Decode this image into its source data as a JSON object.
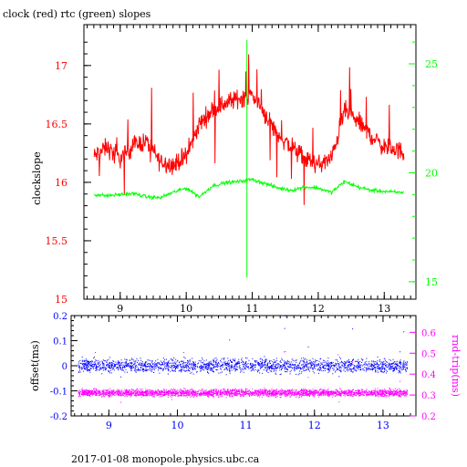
{
  "title": "clock (red) rtc (green) slopes",
  "footer": "2017-01-08 monopole.physics.ubc.ca",
  "colors": {
    "red": "#ff0000",
    "green": "#00ff00",
    "blue": "#0000ff",
    "magenta": "#ff00ff",
    "black": "#000000"
  },
  "chart_data": [
    {
      "type": "line",
      "xlabel": "",
      "ylabel": "clockslope",
      "xlim": [
        8.45,
        13.48
      ],
      "ylim": [
        15,
        17.35
      ],
      "y2lim": [
        14.2,
        26.8
      ],
      "xticks": [
        9,
        10,
        11,
        12,
        13
      ],
      "yticks": [
        15,
        15.5,
        16,
        16.5,
        17
      ],
      "y2ticks": [
        15,
        20,
        25
      ],
      "series": [
        {
          "name": "clock (red)",
          "axis": "left",
          "x": [
            8.6,
            8.8,
            9.0,
            9.2,
            9.4,
            9.6,
            9.8,
            10.0,
            10.2,
            10.4,
            10.6,
            10.8,
            11.0,
            11.2,
            11.4,
            11.6,
            11.8,
            12.0,
            12.2,
            12.4,
            12.6,
            12.8,
            13.0,
            13.2,
            13.3
          ],
          "values": [
            16.22,
            16.3,
            16.2,
            16.32,
            16.35,
            16.18,
            16.15,
            16.22,
            16.5,
            16.62,
            16.68,
            16.72,
            16.75,
            16.58,
            16.4,
            16.3,
            16.2,
            16.15,
            16.2,
            16.62,
            16.52,
            16.4,
            16.3,
            16.28,
            16.25
          ]
        },
        {
          "name": "rtc (green)",
          "axis": "right",
          "x": [
            8.6,
            8.8,
            9.0,
            9.2,
            9.4,
            9.6,
            9.8,
            10.0,
            10.2,
            10.4,
            10.6,
            10.8,
            11.0,
            11.2,
            11.4,
            11.6,
            11.8,
            12.0,
            12.2,
            12.4,
            12.6,
            12.8,
            13.0,
            13.2,
            13.3
          ],
          "values": [
            19.0,
            18.95,
            19.0,
            19.05,
            18.9,
            18.85,
            19.1,
            19.3,
            18.9,
            19.4,
            19.55,
            19.6,
            19.7,
            19.5,
            19.3,
            19.2,
            19.35,
            19.3,
            19.1,
            19.6,
            19.35,
            19.2,
            19.15,
            19.1,
            19.1
          ]
        }
      ],
      "annotations": [
        {
          "name": "rtc spike",
          "x": 10.92,
          "values": [
            15.2,
            26.1
          ]
        }
      ]
    },
    {
      "type": "scatter",
      "xlabel": "",
      "ylabel": "offset(ms)",
      "y2label": "rnd-trip(ms)",
      "xlim": [
        8.45,
        13.48
      ],
      "ylim": [
        -0.2,
        0.2
      ],
      "y2lim": [
        0.2,
        0.68
      ],
      "xticks": [
        9,
        10,
        11,
        12,
        13
      ],
      "yticks": [
        -0.2,
        -0.1,
        0,
        0.1,
        0.2
      ],
      "y2ticks": [
        0.2,
        0.3,
        0.4,
        0.5,
        0.6
      ],
      "series": [
        {
          "name": "offset",
          "axis": "left",
          "center": 0.0,
          "spread": 0.04,
          "x_range": [
            8.55,
            13.35
          ]
        },
        {
          "name": "rnd-trip",
          "axis": "right",
          "center": 0.31,
          "spread": 0.025,
          "x_range": [
            8.55,
            13.35
          ]
        }
      ]
    }
  ]
}
